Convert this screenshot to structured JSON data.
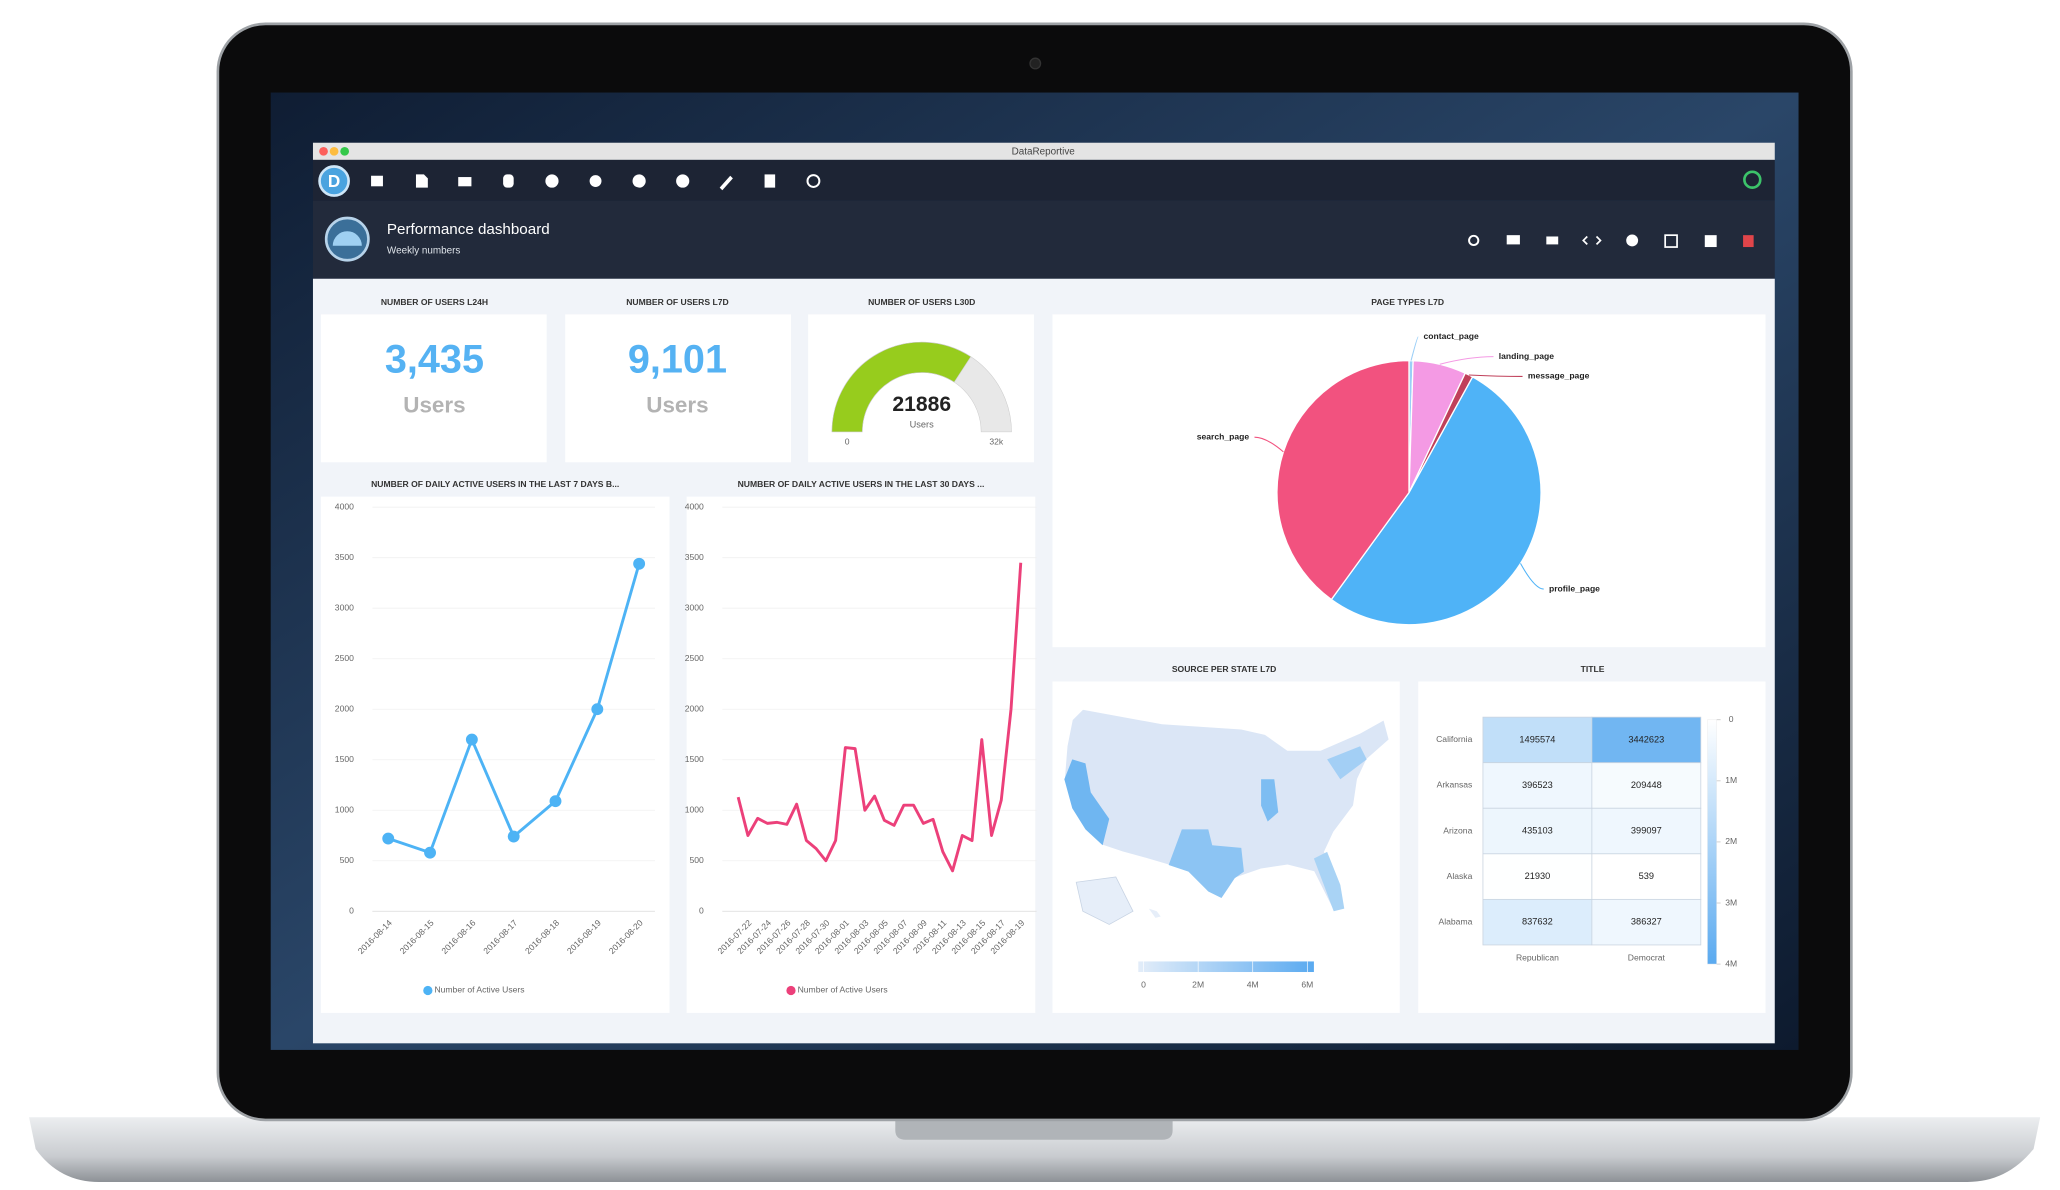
{
  "window_title": "DataReportive",
  "header": {
    "title": "Performance dashboard",
    "subtitle": "Weekly numbers"
  },
  "tiles": [
    {
      "title": "NUMBER OF USERS L24H",
      "value": "3,435",
      "unit": "Users"
    },
    {
      "title": "NUMBER OF USERS L7D",
      "value": "9,101",
      "unit": "Users"
    }
  ],
  "chart_data": [
    {
      "type": "gauge",
      "title": "NUMBER OF USERS L30D",
      "value": 21886,
      "unit": "Users",
      "ylim": [
        0,
        32000
      ],
      "yticks": [
        0,
        {
          "value": 32000,
          "label": "32k"
        }
      ],
      "color": "#97cc1d"
    },
    {
      "type": "line",
      "title": "NUMBER OF DAILY ACTIVE USERS IN THE LAST 7 DAYS B...",
      "categories": [
        "2016-08-14",
        "2016-08-15",
        "2016-08-16",
        "2016-08-17",
        "2016-08-18",
        "2016-08-19",
        "2016-08-20"
      ],
      "series": [
        {
          "name": "Number of Active Users",
          "color": "#4db3f5",
          "values": [
            720,
            580,
            1700,
            740,
            1090,
            2000,
            3440
          ]
        }
      ],
      "ylim": [
        0,
        4000
      ],
      "yticks": [
        0,
        500,
        1000,
        1500,
        2000,
        2500,
        3000,
        3500,
        4000
      ],
      "grid": true,
      "markers": true
    },
    {
      "type": "line",
      "title": "NUMBER OF DAILY ACTIVE USERS IN THE LAST 30 DAYS ...",
      "categories": [
        null,
        "2016-07-22",
        null,
        "2016-07-24",
        null,
        "2016-07-26",
        null,
        "2016-07-28",
        null,
        "2016-07-30",
        null,
        "2016-08-01",
        null,
        "2016-08-03",
        null,
        "2016-08-05",
        null,
        "2016-08-07",
        null,
        "2016-08-09",
        null,
        "2016-08-11",
        null,
        "2016-08-13",
        null,
        "2016-08-15",
        null,
        "2016-08-17",
        null,
        "2016-08-19"
      ],
      "series": [
        {
          "name": "Number of Active Users",
          "color": "#ec407a",
          "values": [
            1130,
            750,
            920,
            870,
            880,
            860,
            1060,
            700,
            620,
            500,
            700,
            1620,
            1610,
            1000,
            1140,
            900,
            850,
            1050,
            1050,
            870,
            910,
            590,
            400,
            750,
            700,
            1700,
            750,
            1100,
            2000,
            3450
          ]
        }
      ],
      "ylim": [
        0,
        4000
      ],
      "yticks": [
        0,
        500,
        1000,
        1500,
        2000,
        2500,
        3000,
        3500,
        4000
      ],
      "grid": true,
      "markers": false
    },
    {
      "type": "pie",
      "title": "PAGE TYPES L7D",
      "categories": [
        "contact_page",
        "landing_page",
        "message_page",
        "profile_page",
        "search_page"
      ],
      "values": [
        0.5,
        6.5,
        1,
        52,
        40
      ],
      "colors": [
        "#9ccff7",
        "#f49ae4",
        "#c0405a",
        "#4fb3f7",
        "#f2527f"
      ]
    },
    {
      "type": "choropleth",
      "title": "SOURCE PER STATE L7D",
      "xlim": [
        0,
        6000000
      ],
      "xticks": [
        0,
        {
          "value": 2000000,
          "label": "2M"
        },
        {
          "value": 4000000,
          "label": "4M"
        },
        {
          "value": 6000000,
          "label": "6M"
        }
      ],
      "colors": [
        "#e3edf9",
        "#5aaaf0"
      ]
    },
    {
      "type": "heatmap",
      "title": "TITLE",
      "rows": [
        "California",
        "Arkansas",
        "Arizona",
        "Alaska",
        "Alabama"
      ],
      "columns": [
        "Republican",
        "Democrat"
      ],
      "values": [
        [
          1495574,
          3442623
        ],
        [
          396523,
          209448
        ],
        [
          435103,
          399097
        ],
        [
          21930,
          539
        ],
        [
          837632,
          386327
        ]
      ],
      "clim": [
        0,
        4000000
      ],
      "cticks": [
        0,
        {
          "value": 1000000,
          "label": "1M"
        },
        {
          "value": 2000000,
          "label": "2M"
        },
        {
          "value": 3000000,
          "label": "3M"
        },
        {
          "value": 4000000,
          "label": "4M"
        }
      ],
      "colors": [
        "#ffffff",
        "#5aaaf0"
      ]
    }
  ]
}
